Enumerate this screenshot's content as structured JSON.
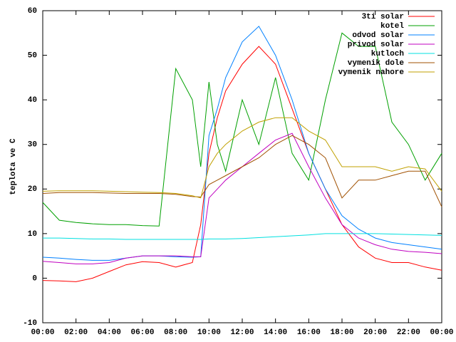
{
  "chart_data": {
    "type": "line",
    "y_label": "teplota ve C",
    "x": [
      0,
      1,
      2,
      3,
      4,
      5,
      6,
      7,
      8,
      9,
      9.5,
      10,
      10.5,
      11,
      12,
      13,
      14,
      15,
      16,
      17,
      18,
      19,
      20,
      21,
      22,
      23,
      24
    ],
    "xlim": [
      0,
      24
    ],
    "xticks": [
      {
        "value": 0,
        "label": "00:00"
      },
      {
        "value": 2,
        "label": "02:00"
      },
      {
        "value": 4,
        "label": "04:00"
      },
      {
        "value": 6,
        "label": "06:00"
      },
      {
        "value": 8,
        "label": "08:00"
      },
      {
        "value": 10,
        "label": "10:00"
      },
      {
        "value": 12,
        "label": "12:00"
      },
      {
        "value": 14,
        "label": "14:00"
      },
      {
        "value": 16,
        "label": "16:00"
      },
      {
        "value": 18,
        "label": "18:00"
      },
      {
        "value": 20,
        "label": "20:00"
      },
      {
        "value": 22,
        "label": "22:00"
      },
      {
        "value": 24,
        "label": "00:00"
      }
    ],
    "ylim": [
      -10,
      60
    ],
    "yticks": [
      -10,
      0,
      10,
      20,
      30,
      40,
      50,
      60
    ],
    "legend": "top-right",
    "series": [
      {
        "name": "3ti solar",
        "color": "#ff0000",
        "values": [
          -0.5,
          -0.6,
          -0.8,
          0,
          1.5,
          3,
          3.7,
          3.5,
          2.5,
          3.5,
          12,
          28,
          36,
          42,
          48,
          52,
          48,
          38,
          28,
          20,
          12,
          7,
          4.5,
          3.5,
          3.5,
          2.5,
          1.8
        ]
      },
      {
        "name": "kotel",
        "color": "#00a000",
        "values": [
          17,
          13,
          12.5,
          12.2,
          12,
          12,
          11.8,
          11.7,
          47,
          40,
          25,
          44,
          30,
          24,
          40,
          30,
          45,
          28,
          22,
          40,
          55,
          52,
          52,
          35,
          30,
          22,
          28
        ]
      },
      {
        "name": "odvod solar",
        "color": "#0080ff",
        "values": [
          4.7,
          4.5,
          4.2,
          4,
          4,
          4.5,
          5,
          5,
          4.8,
          4.7,
          4.8,
          32,
          38,
          45,
          53,
          56.5,
          50,
          40,
          28,
          20,
          14,
          11,
          9,
          8,
          7.5,
          7,
          6.5
        ]
      },
      {
        "name": "privod solar",
        "color": "#c000c0",
        "values": [
          3.8,
          3.5,
          3.2,
          3.2,
          3.5,
          4.5,
          5,
          5,
          5,
          4.8,
          4.8,
          18,
          20,
          22,
          25,
          28,
          31,
          32.5,
          25,
          18,
          12,
          9,
          7.5,
          6.5,
          6,
          5.8,
          5.5
        ]
      },
      {
        "name": "kutloch",
        "color": "#00e0e0",
        "values": [
          9,
          9,
          8.9,
          8.8,
          8.8,
          8.7,
          8.7,
          8.7,
          8.7,
          8.7,
          8.7,
          8.8,
          8.8,
          8.8,
          8.9,
          9.1,
          9.3,
          9.5,
          9.7,
          10,
          10,
          10,
          10,
          9.9,
          9.8,
          9.7,
          9.6
        ]
      },
      {
        "name": "vymenik dole",
        "color": "#a05000",
        "values": [
          19,
          19.2,
          19.2,
          19.2,
          19.1,
          19,
          19,
          19,
          18.8,
          18.3,
          18.2,
          21,
          22,
          23,
          25,
          27,
          30,
          32,
          30,
          27,
          18,
          22,
          22,
          23,
          24,
          24,
          16
        ]
      },
      {
        "name": "vymenik nahore",
        "color": "#c0a000",
        "values": [
          19.5,
          19.6,
          19.6,
          19.6,
          19.5,
          19.4,
          19.3,
          19.2,
          19,
          18.5,
          18,
          25,
          28,
          30,
          33,
          35,
          36,
          36,
          33,
          31,
          25,
          25,
          25,
          24,
          25,
          24.5,
          19.5
        ]
      }
    ]
  }
}
